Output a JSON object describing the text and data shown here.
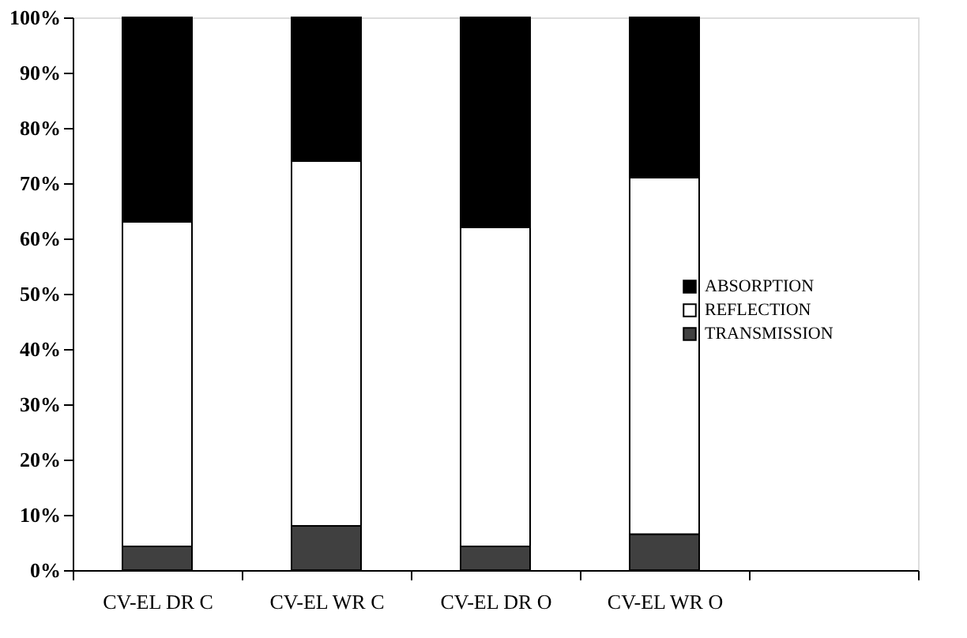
{
  "chart_data": {
    "type": "bar",
    "stacked": true,
    "categories": [
      "CV-EL DR C",
      "CV-EL WR C",
      "CV-EL DR O",
      "CV-EL WR O",
      null
    ],
    "series": [
      {
        "name": "TRANSMISSION",
        "color": "#404040",
        "values": [
          4.3,
          8,
          4.3,
          6.5,
          null
        ]
      },
      {
        "name": "REFLECTION",
        "color": "#ffffff",
        "values": [
          58.7,
          66,
          57.7,
          64.5,
          null
        ]
      },
      {
        "name": "ABSORPTION",
        "color": "#000000",
        "values": [
          37,
          26,
          38,
          29,
          null
        ]
      }
    ],
    "ylim": [
      0,
      100
    ],
    "yticks": [
      {
        "value": 0,
        "label": "0%"
      },
      {
        "value": 10,
        "label": "10%"
      },
      {
        "value": 20,
        "label": "20%"
      },
      {
        "value": 30,
        "label": "30%"
      },
      {
        "value": 40,
        "label": "40%"
      },
      {
        "value": 50,
        "label": "50%"
      },
      {
        "value": 60,
        "label": "60%"
      },
      {
        "value": 70,
        "label": "70%"
      },
      {
        "value": 80,
        "label": "80%"
      },
      {
        "value": 90,
        "label": "90%"
      },
      {
        "value": 100,
        "label": "100%"
      }
    ],
    "legend": "right",
    "grid": false
  }
}
